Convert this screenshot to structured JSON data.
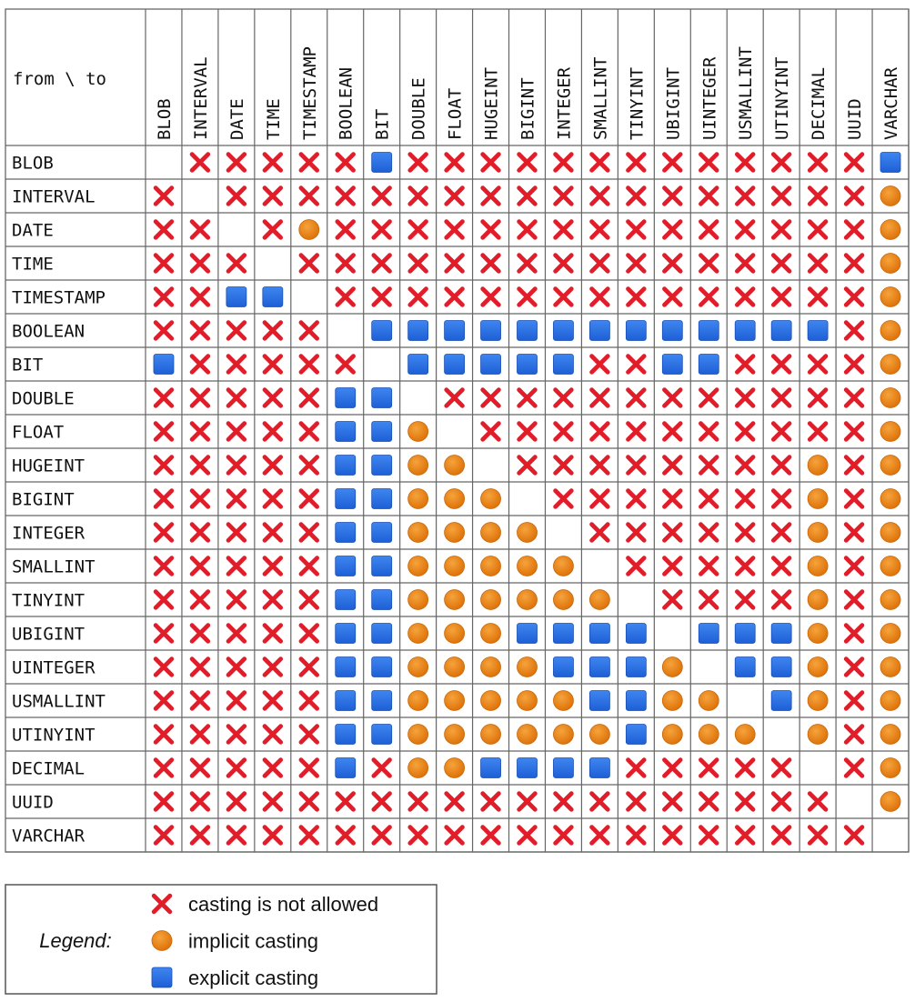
{
  "table": {
    "corner": "from \\ to",
    "columns": [
      "BLOB",
      "INTERVAL",
      "DATE",
      "TIME",
      "TIMESTAMP",
      "BOOLEAN",
      "BIT",
      "DOUBLE",
      "FLOAT",
      "HUGEINT",
      "BIGINT",
      "INTEGER",
      "SMALLINT",
      "TINYINT",
      "UBIGINT",
      "UINTEGER",
      "USMALLINT",
      "UTINYINT",
      "DECIMAL",
      "UUID",
      "VARCHAR"
    ],
    "rows": [
      {
        "label": "BLOB",
        "cells": [
          null,
          "x",
          "x",
          "x",
          "x",
          "x",
          "s",
          "x",
          "x",
          "x",
          "x",
          "x",
          "x",
          "x",
          "x",
          "x",
          "x",
          "x",
          "x",
          "x",
          "s"
        ]
      },
      {
        "label": "INTERVAL",
        "cells": [
          "x",
          null,
          "x",
          "x",
          "x",
          "x",
          "x",
          "x",
          "x",
          "x",
          "x",
          "x",
          "x",
          "x",
          "x",
          "x",
          "x",
          "x",
          "x",
          "x",
          "o"
        ]
      },
      {
        "label": "DATE",
        "cells": [
          "x",
          "x",
          null,
          "x",
          "o",
          "x",
          "x",
          "x",
          "x",
          "x",
          "x",
          "x",
          "x",
          "x",
          "x",
          "x",
          "x",
          "x",
          "x",
          "x",
          "o"
        ]
      },
      {
        "label": "TIME",
        "cells": [
          "x",
          "x",
          "x",
          null,
          "x",
          "x",
          "x",
          "x",
          "x",
          "x",
          "x",
          "x",
          "x",
          "x",
          "x",
          "x",
          "x",
          "x",
          "x",
          "x",
          "o"
        ]
      },
      {
        "label": "TIMESTAMP",
        "cells": [
          "x",
          "x",
          "s",
          "s",
          null,
          "x",
          "x",
          "x",
          "x",
          "x",
          "x",
          "x",
          "x",
          "x",
          "x",
          "x",
          "x",
          "x",
          "x",
          "x",
          "o"
        ]
      },
      {
        "label": "BOOLEAN",
        "cells": [
          "x",
          "x",
          "x",
          "x",
          "x",
          null,
          "s",
          "s",
          "s",
          "s",
          "s",
          "s",
          "s",
          "s",
          "s",
          "s",
          "s",
          "s",
          "s",
          "x",
          "o"
        ]
      },
      {
        "label": "BIT",
        "cells": [
          "s",
          "x",
          "x",
          "x",
          "x",
          "x",
          null,
          "s",
          "s",
          "s",
          "s",
          "s",
          "x",
          "x",
          "s",
          "s",
          "x",
          "x",
          "x",
          "x",
          "o"
        ]
      },
      {
        "label": "DOUBLE",
        "cells": [
          "x",
          "x",
          "x",
          "x",
          "x",
          "s",
          "s",
          null,
          "x",
          "x",
          "x",
          "x",
          "x",
          "x",
          "x",
          "x",
          "x",
          "x",
          "x",
          "x",
          "o"
        ]
      },
      {
        "label": "FLOAT",
        "cells": [
          "x",
          "x",
          "x",
          "x",
          "x",
          "s",
          "s",
          "o",
          null,
          "x",
          "x",
          "x",
          "x",
          "x",
          "x",
          "x",
          "x",
          "x",
          "x",
          "x",
          "o"
        ]
      },
      {
        "label": "HUGEINT",
        "cells": [
          "x",
          "x",
          "x",
          "x",
          "x",
          "s",
          "s",
          "o",
          "o",
          null,
          "x",
          "x",
          "x",
          "x",
          "x",
          "x",
          "x",
          "x",
          "o",
          "x",
          "o"
        ]
      },
      {
        "label": "BIGINT",
        "cells": [
          "x",
          "x",
          "x",
          "x",
          "x",
          "s",
          "s",
          "o",
          "o",
          "o",
          null,
          "x",
          "x",
          "x",
          "x",
          "x",
          "x",
          "x",
          "o",
          "x",
          "o"
        ]
      },
      {
        "label": "INTEGER",
        "cells": [
          "x",
          "x",
          "x",
          "x",
          "x",
          "s",
          "s",
          "o",
          "o",
          "o",
          "o",
          null,
          "x",
          "x",
          "x",
          "x",
          "x",
          "x",
          "o",
          "x",
          "o"
        ]
      },
      {
        "label": "SMALLINT",
        "cells": [
          "x",
          "x",
          "x",
          "x",
          "x",
          "s",
          "s",
          "o",
          "o",
          "o",
          "o",
          "o",
          null,
          "x",
          "x",
          "x",
          "x",
          "x",
          "o",
          "x",
          "o"
        ]
      },
      {
        "label": "TINYINT",
        "cells": [
          "x",
          "x",
          "x",
          "x",
          "x",
          "s",
          "s",
          "o",
          "o",
          "o",
          "o",
          "o",
          "o",
          null,
          "x",
          "x",
          "x",
          "x",
          "o",
          "x",
          "o"
        ]
      },
      {
        "label": "UBIGINT",
        "cells": [
          "x",
          "x",
          "x",
          "x",
          "x",
          "s",
          "s",
          "o",
          "o",
          "o",
          "s",
          "s",
          "s",
          "s",
          null,
          "s",
          "s",
          "s",
          "o",
          "x",
          "o"
        ]
      },
      {
        "label": "UINTEGER",
        "cells": [
          "x",
          "x",
          "x",
          "x",
          "x",
          "s",
          "s",
          "o",
          "o",
          "o",
          "o",
          "s",
          "s",
          "s",
          "o",
          null,
          "s",
          "s",
          "o",
          "x",
          "o"
        ]
      },
      {
        "label": "USMALLINT",
        "cells": [
          "x",
          "x",
          "x",
          "x",
          "x",
          "s",
          "s",
          "o",
          "o",
          "o",
          "o",
          "o",
          "s",
          "s",
          "o",
          "o",
          null,
          "s",
          "o",
          "x",
          "o"
        ]
      },
      {
        "label": "UTINYINT",
        "cells": [
          "x",
          "x",
          "x",
          "x",
          "x",
          "s",
          "s",
          "o",
          "o",
          "o",
          "o",
          "o",
          "o",
          "s",
          "o",
          "o",
          "o",
          null,
          "o",
          "x",
          "o"
        ]
      },
      {
        "label": "DECIMAL",
        "cells": [
          "x",
          "x",
          "x",
          "x",
          "x",
          "s",
          "x",
          "o",
          "o",
          "s",
          "s",
          "s",
          "s",
          "x",
          "x",
          "x",
          "x",
          "x",
          null,
          "x",
          "o"
        ]
      },
      {
        "label": "UUID",
        "cells": [
          "x",
          "x",
          "x",
          "x",
          "x",
          "x",
          "x",
          "x",
          "x",
          "x",
          "x",
          "x",
          "x",
          "x",
          "x",
          "x",
          "x",
          "x",
          "x",
          null,
          "o"
        ]
      },
      {
        "label": "VARCHAR",
        "cells": [
          "x",
          "x",
          "x",
          "x",
          "x",
          "x",
          "x",
          "x",
          "x",
          "x",
          "x",
          "x",
          "x",
          "x",
          "x",
          "x",
          "x",
          "x",
          "x",
          "x",
          null
        ]
      }
    ]
  },
  "legend": {
    "title": "Legend:",
    "items": [
      {
        "symbol": "x",
        "label": "casting is not allowed"
      },
      {
        "symbol": "o",
        "label": "implicit casting"
      },
      {
        "symbol": "s",
        "label": "explicit casting"
      }
    ]
  }
}
